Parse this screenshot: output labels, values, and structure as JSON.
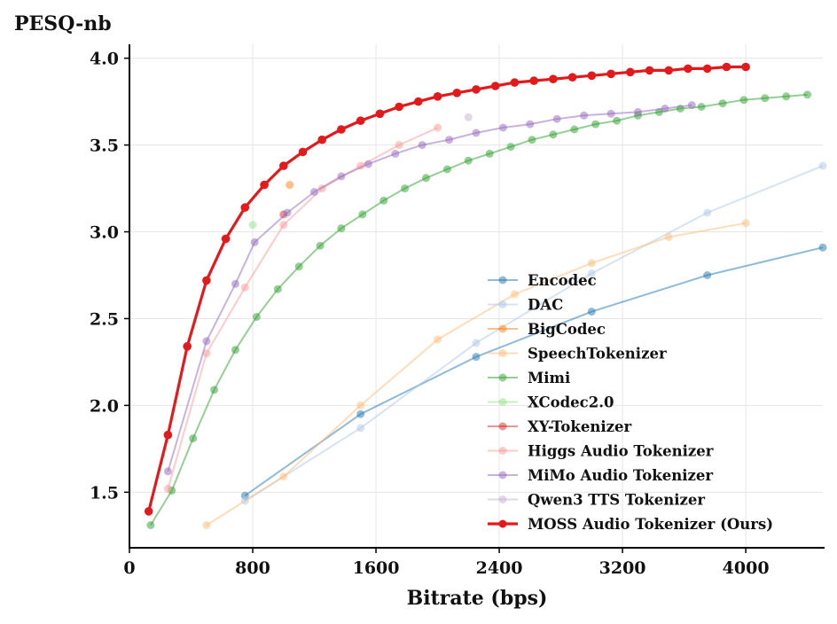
{
  "chart_data": {
    "type": "line",
    "title": "",
    "xlabel": "Bitrate (bps)",
    "ylabel": "PESQ-nb",
    "xlim": [
      0,
      4500
    ],
    "ylim": [
      1.18,
      4.08
    ],
    "xticks": [
      0,
      800,
      1600,
      2400,
      3200,
      4000
    ],
    "yticks": [
      1.5,
      2.0,
      2.5,
      3.0,
      3.5,
      4.0
    ],
    "xtick_labels": [
      "0",
      "800",
      "1600",
      "2400",
      "3200",
      "4000"
    ],
    "ytick_labels": [
      "1.5",
      "2.0",
      "2.5",
      "3.0",
      "3.5",
      "4.0"
    ],
    "grid": true,
    "legend_position": "bottom-right",
    "series": [
      {
        "name": "Encodec",
        "color": "#1f77b4",
        "x": [
          750,
          1500,
          2250,
          3000,
          3750,
          4500
        ],
        "y": [
          1.48,
          1.95,
          2.28,
          2.54,
          2.75,
          2.91
        ]
      },
      {
        "name": "DAC",
        "color": "#aec7e8",
        "x": [
          750,
          1500,
          2250,
          3000,
          3750,
          4500
        ],
        "y": [
          1.45,
          1.87,
          2.36,
          2.76,
          3.11,
          3.38
        ]
      },
      {
        "name": "BigCodec",
        "color": "#ff7f0e",
        "x": [
          1040
        ],
        "y": [
          3.27
        ]
      },
      {
        "name": "SpeechTokenizer",
        "color": "#ffbb78",
        "x": [
          500,
          1000,
          1500,
          2000,
          2500,
          3000,
          3500,
          4000
        ],
        "y": [
          1.31,
          1.59,
          2.0,
          2.38,
          2.64,
          2.82,
          2.97,
          3.05
        ]
      },
      {
        "name": "Mimi",
        "color": "#2ca02c",
        "x": [
          137.5,
          275,
          412.5,
          550,
          687.5,
          825,
          962.5,
          1100,
          1237.5,
          1375,
          1512.5,
          1650,
          1787.5,
          1925,
          2062.5,
          2200,
          2337.5,
          2475,
          2612.5,
          2750,
          2887.5,
          3025,
          3162.5,
          3300,
          3437.5,
          3575,
          3712.5,
          3850,
          3987.5,
          4125,
          4262.5,
          4400
        ],
        "y": [
          1.31,
          1.51,
          1.81,
          2.09,
          2.32,
          2.51,
          2.67,
          2.8,
          2.92,
          3.02,
          3.1,
          3.18,
          3.25,
          3.31,
          3.36,
          3.41,
          3.45,
          3.49,
          3.53,
          3.56,
          3.59,
          3.62,
          3.64,
          3.67,
          3.69,
          3.71,
          3.72,
          3.74,
          3.76,
          3.77,
          3.78,
          3.79
        ]
      },
      {
        "name": "XCodec2.0",
        "color": "#98df8a",
        "x": [
          800
        ],
        "y": [
          3.04
        ]
      },
      {
        "name": "XY-Tokenizer",
        "color": "#d62728",
        "x": [
          1000
        ],
        "y": [
          3.1
        ]
      },
      {
        "name": "Higgs Audio Tokenizer",
        "color": "#ff9896",
        "x": [
          250,
          500,
          750,
          1000,
          1250,
          1500,
          1750,
          2000
        ],
        "y": [
          1.52,
          2.3,
          2.68,
          3.04,
          3.25,
          3.38,
          3.5,
          3.6
        ]
      },
      {
        "name": "MiMo Audio Tokenizer",
        "color": "#9467bd",
        "x": [
          250,
          500,
          687.5,
          812.5,
          1025,
          1200,
          1375,
          1550,
          1725,
          1900,
          2075,
          2250,
          2425,
          2600,
          2775,
          2950,
          3125,
          3300,
          3475,
          3650
        ],
        "y": [
          1.62,
          2.37,
          2.7,
          2.94,
          3.11,
          3.23,
          3.32,
          3.39,
          3.45,
          3.5,
          3.53,
          3.57,
          3.6,
          3.62,
          3.65,
          3.67,
          3.68,
          3.69,
          3.71,
          3.73
        ]
      },
      {
        "name": "Qwen3 TTS Tokenizer",
        "color": "#c5b0d5",
        "x": [
          2200
        ],
        "y": [
          3.66
        ]
      },
      {
        "name": "MOSS Audio Tokenizer (Ours)",
        "color": "#e31a1c",
        "x": [
          125,
          250,
          375,
          500,
          625,
          750,
          875,
          1000,
          1125,
          1250,
          1375,
          1500,
          1625,
          1750,
          1875,
          2000,
          2125,
          2250,
          2375,
          2500,
          2625,
          2750,
          2875,
          3000,
          3125,
          3250,
          3375,
          3500,
          3625,
          3750,
          3875,
          4000
        ],
        "y": [
          1.39,
          1.83,
          2.34,
          2.72,
          2.96,
          3.14,
          3.27,
          3.38,
          3.46,
          3.53,
          3.59,
          3.64,
          3.68,
          3.72,
          3.75,
          3.78,
          3.8,
          3.82,
          3.84,
          3.86,
          3.87,
          3.88,
          3.89,
          3.9,
          3.91,
          3.92,
          3.93,
          3.93,
          3.94,
          3.94,
          3.95,
          3.95
        ]
      }
    ]
  }
}
